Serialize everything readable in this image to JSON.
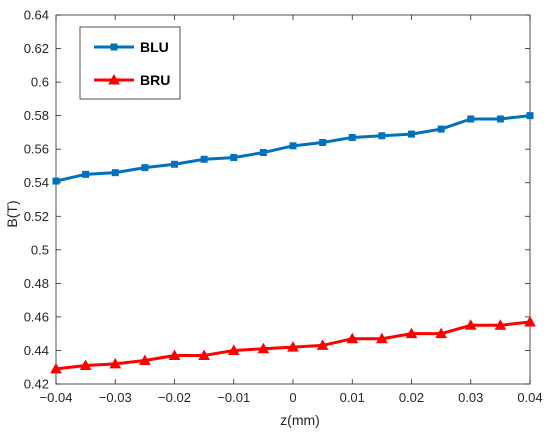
{
  "chart_data": {
    "type": "line",
    "xlabel": "z(mm)",
    "ylabel": "B(T)",
    "xlim": [
      -0.04,
      0.04
    ],
    "ylim": [
      0.42,
      0.64
    ],
    "x_ticks": [
      -0.04,
      -0.03,
      -0.02,
      -0.01,
      0,
      0.01,
      0.02,
      0.03,
      0.04
    ],
    "x_tick_labels": [
      "−0.04",
      "−0.03",
      "−0.02",
      "−0.01",
      "0",
      "0.01",
      "0.02",
      "0.03",
      "0.04"
    ],
    "y_ticks": [
      0.42,
      0.44,
      0.46,
      0.48,
      0.5,
      0.52,
      0.54,
      0.56,
      0.58,
      0.6,
      0.62,
      0.64
    ],
    "y_tick_labels": [
      "0.42",
      "0.44",
      "0.46",
      "0.48",
      "0.5",
      "0.52",
      "0.54",
      "0.56",
      "0.58",
      "0.6",
      "0.62",
      "0.64"
    ],
    "grid": false,
    "legend_position": "top-left",
    "x": [
      -0.04,
      -0.035,
      -0.03,
      -0.025,
      -0.02,
      -0.015,
      -0.01,
      -0.005,
      0,
      0.005,
      0.01,
      0.015,
      0.02,
      0.025,
      0.03,
      0.035,
      0.04
    ],
    "series": [
      {
        "name": "BLU",
        "color": "#0072BD",
        "marker": "square",
        "values": [
          0.541,
          0.545,
          0.546,
          0.549,
          0.551,
          0.554,
          0.555,
          0.558,
          0.562,
          0.564,
          0.567,
          0.568,
          0.569,
          0.572,
          0.578,
          0.578,
          0.58
        ]
      },
      {
        "name": "BRU",
        "color": "#FF0000",
        "marker": "triangle",
        "values": [
          0.429,
          0.431,
          0.432,
          0.434,
          0.437,
          0.437,
          0.44,
          0.441,
          0.442,
          0.443,
          0.447,
          0.447,
          0.45,
          0.45,
          0.455,
          0.455,
          0.457
        ]
      }
    ]
  }
}
